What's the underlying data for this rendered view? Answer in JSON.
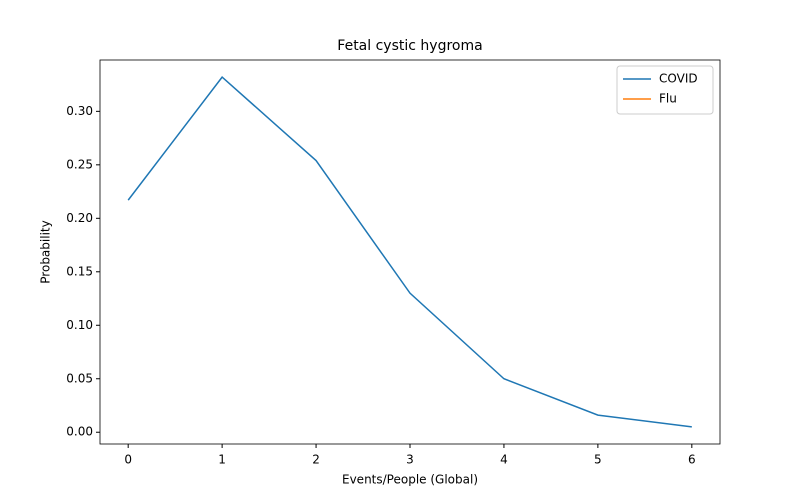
{
  "chart_data": {
    "type": "line",
    "title": "Fetal cystic hygroma",
    "x_label": "Events/People (Global)",
    "y_label": "Probability",
    "x": [
      0,
      1,
      2,
      3,
      4,
      5,
      6
    ],
    "series": [
      {
        "name": "COVID",
        "color": "#1f77b4",
        "values": [
          0.217,
          0.332,
          0.254,
          0.13,
          0.05,
          0.016,
          0.005
        ]
      },
      {
        "name": "Flu",
        "color": "#ff7f0e",
        "values": [
          null,
          null,
          null,
          null,
          null,
          null,
          null
        ]
      }
    ],
    "xlim": [
      -0.3,
      6.3
    ],
    "ylim": [
      -0.011,
      0.348
    ],
    "xticks": [
      0,
      1,
      2,
      3,
      4,
      5,
      6
    ],
    "yticks": [
      {
        "value": 0,
        "label": "0.00"
      },
      {
        "value": 0.05,
        "label": "0.05"
      },
      {
        "value": 0.1,
        "label": "0.10"
      },
      {
        "value": 0.15,
        "label": "0.15"
      },
      {
        "value": 0.2,
        "label": "0.20"
      },
      {
        "value": 0.25,
        "label": "0.25"
      },
      {
        "value": 0.3,
        "label": "0.30"
      }
    ],
    "legend": "upper right"
  }
}
